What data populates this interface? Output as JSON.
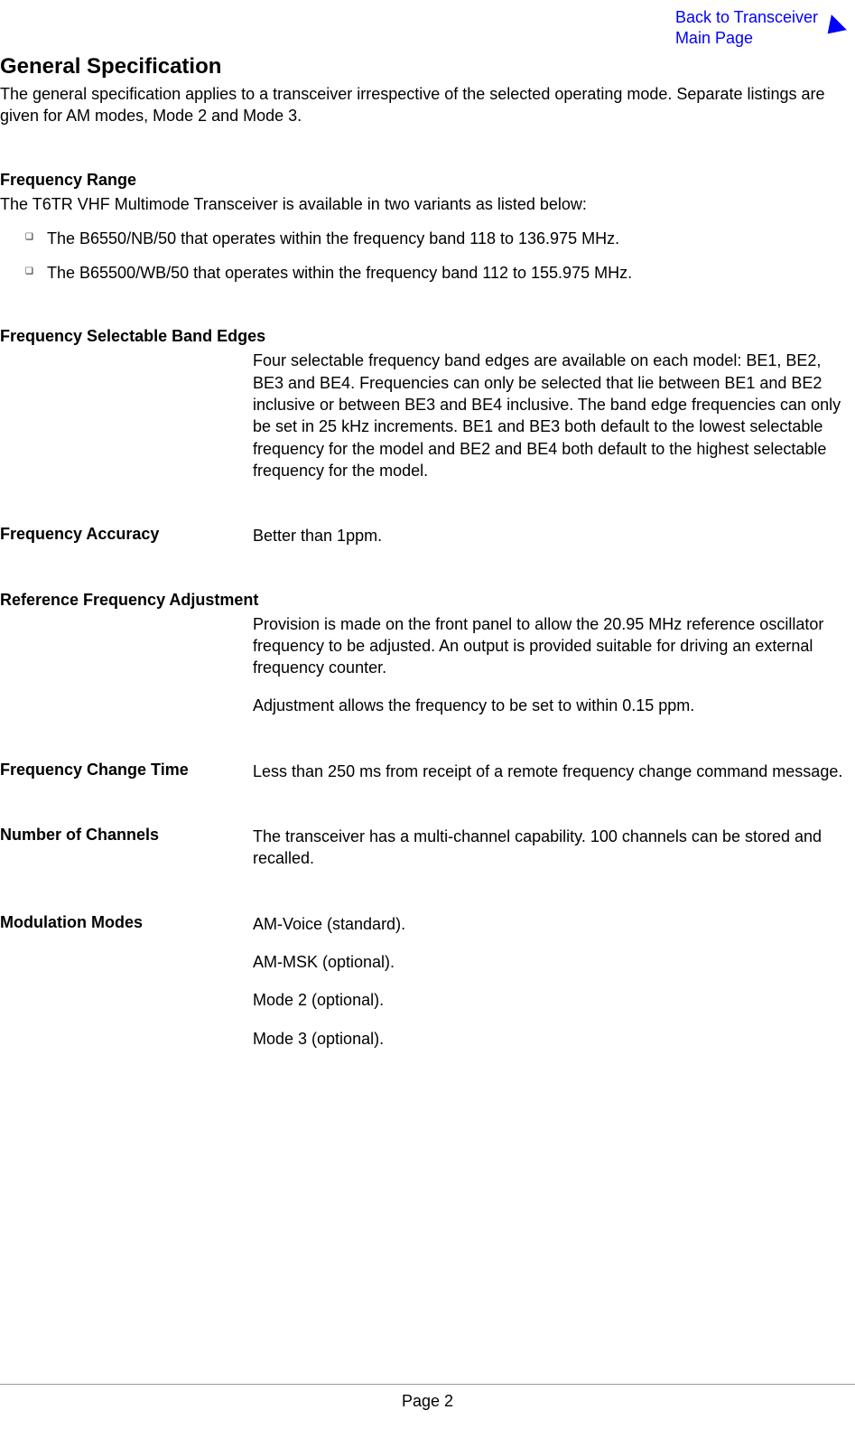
{
  "back_link": {
    "line1": "Back to Transceiver",
    "line2": "Main Page"
  },
  "main_heading": "General Specification",
  "intro": "The general specification applies to a transceiver irrespective of the selected operating mode. Separate listings are given for AM modes, Mode 2 and Mode 3.",
  "sections": {
    "freq_range": {
      "heading": "Frequency Range",
      "intro": "The T6TR VHF Multimode Transceiver is available in two variants as listed below:",
      "bullets": [
        "The B6550/NB/50 that operates within the frequency band 118 to 136.975 MHz.",
        "The B65500/WB/50 that operates within the frequency band 112 to 155.975 MHz."
      ]
    },
    "band_edges": {
      "heading": "Frequency Selectable Band Edges",
      "body": "Four selectable frequency band edges are available on each model: BE1, BE2, BE3 and BE4. Frequencies can only be selected that lie between BE1 and BE2 inclusive or between BE3 and BE4 inclusive. The band edge frequencies can only be set in 25 kHz increments. BE1 and BE3 both default to the lowest selectable frequency for the model and BE2 and BE4 both default to the highest selectable frequency for the model."
    },
    "freq_accuracy": {
      "heading": "Frequency Accuracy",
      "body": "Better than 1ppm."
    },
    "ref_freq_adj": {
      "heading": "Reference Frequency Adjustment",
      "body1": "Provision is made on the front panel to allow the 20.95 MHz reference oscillator frequency to be adjusted. An output is provided suitable for driving an external frequency counter.",
      "body2": "Adjustment allows the frequency to be set to within 0.15 ppm."
    },
    "freq_change": {
      "heading": "Frequency Change Time",
      "body": "Less than 250 ms from receipt of a remote frequency change command message."
    },
    "channels": {
      "heading": "Number of Channels",
      "body": "The transceiver has a multi-channel capability. 100 channels can be stored and recalled."
    },
    "modulation": {
      "heading": "Modulation Modes",
      "modes": [
        "AM-Voice (standard).",
        "AM-MSK (optional).",
        "Mode 2 (optional).",
        "Mode 3 (optional)."
      ]
    }
  },
  "footer": "Page 2",
  "colors": {
    "link": "#0000ff",
    "text": "#000000",
    "background": "#ffffff",
    "footer_line": "#999999"
  },
  "typography": {
    "body_fontsize": 18,
    "heading_fontsize": 24,
    "font_family": "Arial"
  }
}
